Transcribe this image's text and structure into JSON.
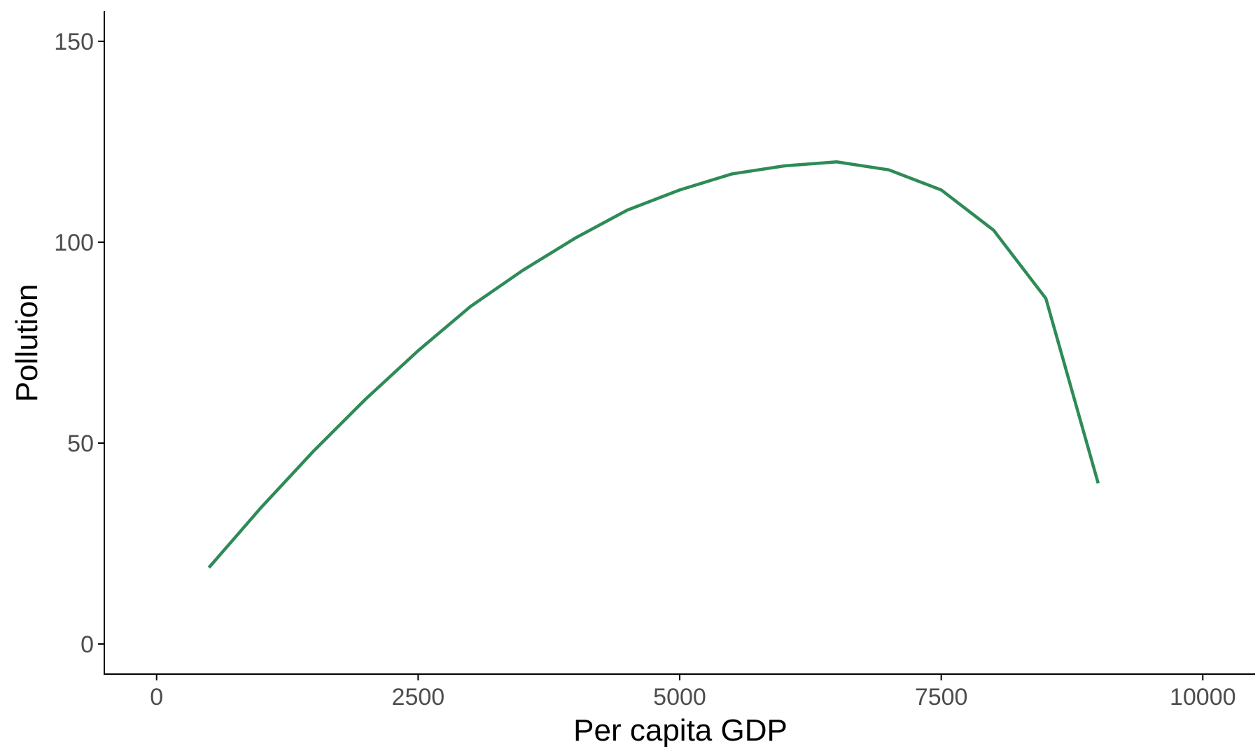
{
  "chart_data": {
    "type": "line",
    "title": "",
    "xlabel": "Per capita GDP",
    "ylabel": "Pollution",
    "xlim": [
      -500,
      10500
    ],
    "ylim": [
      -7.5,
      157.5
    ],
    "x_ticks": [
      0,
      2500,
      5000,
      7500,
      10000
    ],
    "x_tick_labels": [
      "0",
      "2500",
      "5000",
      "7500",
      "10000"
    ],
    "y_ticks": [
      0,
      50,
      100,
      150
    ],
    "y_tick_labels": [
      "0",
      "50",
      "100",
      "150"
    ],
    "grid": false,
    "legend": "none",
    "series": [
      {
        "color": "#2e8b57",
        "x": [
          500,
          1000,
          1500,
          2000,
          2500,
          3000,
          3500,
          4000,
          4500,
          5000,
          5500,
          6000,
          6500,
          7000,
          7500,
          8000,
          8500,
          9000
        ],
        "y": [
          19,
          34,
          48,
          61,
          73,
          84,
          93,
          101,
          108,
          113,
          117,
          119,
          120,
          118,
          113,
          103,
          86,
          40
        ]
      }
    ]
  }
}
